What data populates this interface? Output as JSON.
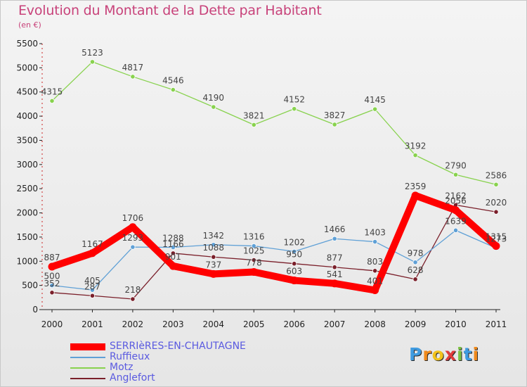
{
  "header": {
    "title": "Evolution du Montant de la Dette par Habitant",
    "subtitle": "(en €)"
  },
  "chart_data": {
    "type": "line",
    "title": "Evolution du Montant de la Dette par Habitant",
    "subtitle": "(en €)",
    "xlabel": "",
    "ylabel": "",
    "x": [
      "2000",
      "2001",
      "2002",
      "2003",
      "2004",
      "2005",
      "2006",
      "2007",
      "2008",
      "2009",
      "2010",
      "2011"
    ],
    "ylim": [
      0,
      5500
    ],
    "yticks": [
      0,
      500,
      1000,
      1500,
      2000,
      2500,
      3000,
      3500,
      4000,
      4500,
      5000,
      5500
    ],
    "grid": false,
    "legend_position": "bottom-left",
    "series": [
      {
        "name": "SERRIèRES-EN-CHAUTAGNE",
        "color": "#ff0000",
        "values": [
          887,
          1167,
          1706,
          901,
          737,
          778,
          603,
          541,
          401,
          2359,
          2056,
          1315
        ]
      },
      {
        "name": "Ruffieux",
        "color": "#5fa0d6",
        "values": [
          500,
          405,
          1293,
          1288,
          1342,
          1316,
          1202,
          1466,
          1403,
          978,
          1639,
          1273
        ]
      },
      {
        "name": "Motz",
        "color": "#88d24e",
        "values": [
          4315,
          5123,
          4817,
          4546,
          4190,
          3821,
          4152,
          3827,
          4145,
          3192,
          2790,
          2586
        ]
      },
      {
        "name": "Anglefort",
        "color": "#7a1f2a",
        "values": [
          352,
          287,
          218,
          1166,
          1088,
          1025,
          950,
          877,
          803,
          628,
          2162,
          2020
        ]
      }
    ]
  },
  "logo": {
    "letters": [
      "P",
      "r",
      "o",
      "x",
      "i",
      "t",
      "i"
    ],
    "colors": [
      "#3f9be0",
      "#f08a1c",
      "#f2c21b",
      "#e03b3b",
      "#7cc242",
      "#3f9be0",
      "#f08a1c"
    ]
  }
}
